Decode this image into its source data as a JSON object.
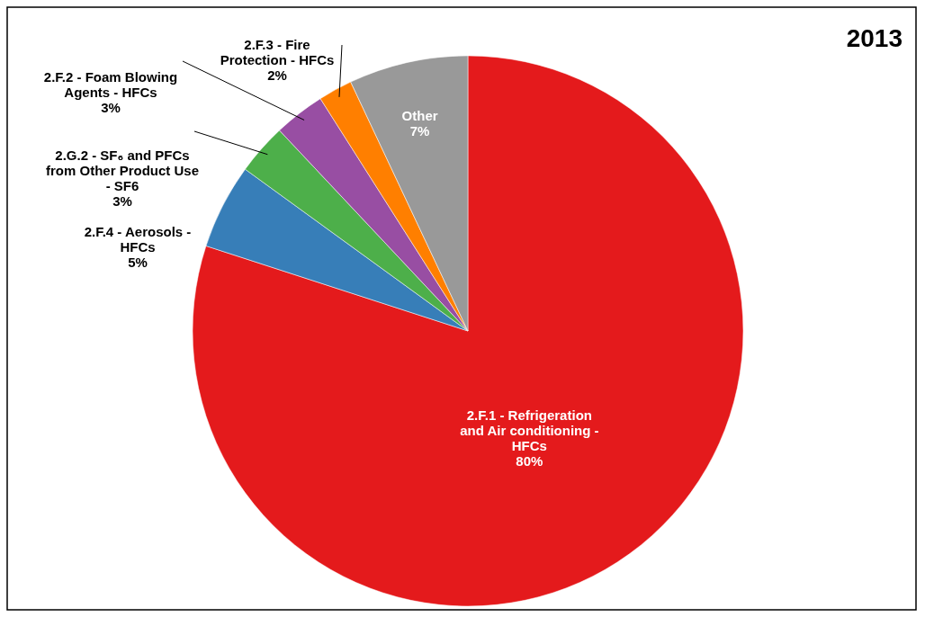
{
  "chart_data": {
    "type": "pie",
    "title": "2013",
    "categories": [
      "2.F.1 - Refrigeration and Air conditioning - HFCs",
      "2.F.4 - Aerosols - HFCs",
      "2.G.2 - SF₆ and PFCs from Other Product Use - SF6",
      "2.F.2 - Foam Blowing Agents - HFCs",
      "2.F.3 - Fire Protection - HFCs",
      "Other"
    ],
    "values": [
      80,
      5,
      3,
      3,
      2,
      7
    ],
    "value_labels": [
      "80%",
      "5%",
      "3%",
      "3%",
      "2%",
      "7%"
    ],
    "colors": [
      "#e41a1c",
      "#377eb8",
      "#4daf4a",
      "#984ea3",
      "#ff7f00",
      "#999999"
    ]
  }
}
